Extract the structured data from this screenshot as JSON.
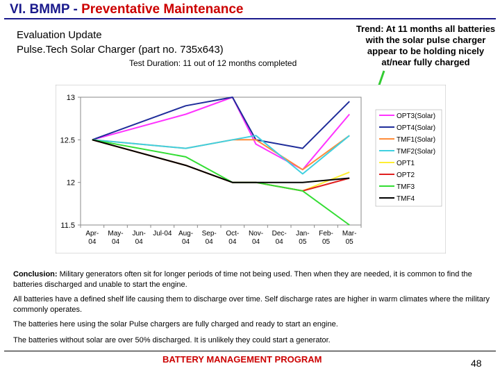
{
  "slide": {
    "title_prefix": "VI. BMMP - ",
    "title_main": "Preventative Maintenance",
    "evaluation": "Evaluation Update",
    "device": "Pulse.Tech Solar Charger (part no. 735x643)",
    "duration": "Test Duration:  11 out of 12 months completed",
    "trend": "Trend: At 11 months all batteries with the solar pulse charger appear to be holding nicely at/near fully charged",
    "conclusion_label": "Conclusion:",
    "conclusion_text": "  Military generators often sit for longer periods of time not being used.  Then when they are needed, it is common to find the batteries discharged and unable to start the engine.",
    "para2": "All batteries have a defined shelf life causing them to discharge over time.  Self discharge rates are higher in warm climates where the military commonly operates.",
    "para3": "The batteries here using the solar Pulse chargers are fully charged and ready to start an engine.",
    "para4": "The batteries without solar are over 50% discharged.  It is unlikely they could start a generator.",
    "footer": "BATTERY MANAGEMENT PROGRAM",
    "page_number": "48",
    "colors": {
      "title_blue": "#1a1a8c",
      "title_red": "#cc0000",
      "arrow": "#33cc33"
    }
  },
  "chart_data": {
    "type": "line",
    "title": "",
    "xlabel": "",
    "ylabel": "",
    "ylim": [
      11.5,
      13
    ],
    "yticks": [
      11.5,
      12,
      12.5,
      13
    ],
    "ytick_labels": [
      "11.5",
      "12",
      "12.5",
      "13"
    ],
    "grid": false,
    "legend_position": "right",
    "categories": [
      "Apr-04",
      "May-04",
      "Jun-04",
      "Jul-04",
      "Aug-04",
      "Sep-04",
      "Oct-04",
      "Nov-04",
      "Dec-04",
      "Jan-05",
      "Feb-05",
      "Mar-05"
    ],
    "category_lines": [
      [
        "Apr-",
        "04"
      ],
      [
        "May-",
        "04"
      ],
      [
        "Jun-",
        "04"
      ],
      [
        "Jul-04",
        ""
      ],
      [
        "Aug-",
        "04"
      ],
      [
        "Sep-",
        "04"
      ],
      [
        "Oct-",
        "04"
      ],
      [
        "Nov-",
        "04"
      ],
      [
        "Dec-",
        "04"
      ],
      [
        "Jan-",
        "05"
      ],
      [
        "Feb-",
        "05"
      ],
      [
        "Mar-",
        "05"
      ]
    ],
    "series": [
      {
        "name": "OPT3(Solar)",
        "color": "#ff33ff",
        "values": [
          12.5,
          null,
          null,
          null,
          12.8,
          null,
          13.0,
          12.45,
          null,
          12.15,
          null,
          12.8
        ]
      },
      {
        "name": "OPT4(Solar)",
        "color": "#1f2d9a",
        "values": [
          12.5,
          null,
          null,
          null,
          12.9,
          null,
          13.0,
          12.5,
          null,
          12.4,
          null,
          12.95
        ]
      },
      {
        "name": "TMF1(Solar)",
        "color": "#ff8c3a",
        "values": [
          12.5,
          null,
          null,
          null,
          12.4,
          null,
          12.5,
          12.5,
          null,
          12.15,
          null,
          12.55
        ]
      },
      {
        "name": "TMF2(Solar)",
        "color": "#3fd0e0",
        "values": [
          12.5,
          null,
          null,
          null,
          12.4,
          null,
          12.5,
          12.55,
          null,
          12.1,
          null,
          12.55
        ]
      },
      {
        "name": "OPT1",
        "color": "#ffee33",
        "values": [
          12.5,
          null,
          null,
          null,
          12.2,
          null,
          12.0,
          12.0,
          null,
          11.9,
          null,
          12.12
        ]
      },
      {
        "name": "OPT2",
        "color": "#e02020",
        "values": [
          12.5,
          null,
          null,
          null,
          12.2,
          null,
          12.0,
          12.0,
          null,
          11.9,
          null,
          12.05
        ]
      },
      {
        "name": "TMF3",
        "color": "#33dd33",
        "values": [
          12.5,
          null,
          null,
          null,
          12.3,
          null,
          12.0,
          12.0,
          null,
          11.9,
          null,
          11.5
        ]
      },
      {
        "name": "TMF4",
        "color": "#000000",
        "values": [
          12.5,
          null,
          null,
          null,
          12.2,
          null,
          12.0,
          12.0,
          null,
          12.0,
          null,
          12.05
        ]
      }
    ]
  }
}
